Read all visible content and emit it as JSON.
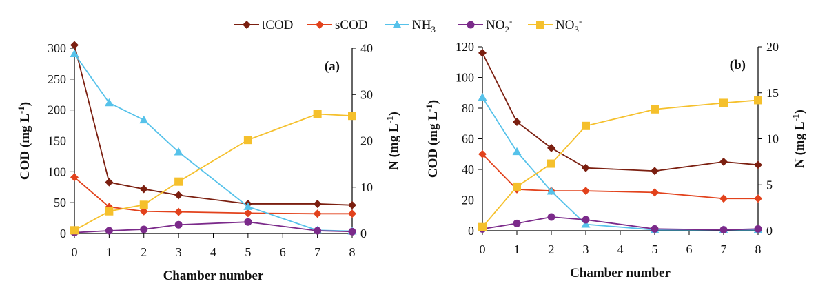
{
  "legend": {
    "items": [
      {
        "key": "tCOD",
        "label": "tCOD",
        "sub": "",
        "sup": "",
        "color": "#7b1f10",
        "marker": "diamond"
      },
      {
        "key": "sCOD",
        "label": "sCOD",
        "sub": "",
        "sup": "",
        "color": "#e2421c",
        "marker": "diamond"
      },
      {
        "key": "NH3",
        "label": "NH",
        "sub": "3",
        "sup": "",
        "color": "#56c2ea",
        "marker": "triangle"
      },
      {
        "key": "NO2",
        "label": "NO",
        "sub": "2",
        "sup": "-",
        "color": "#7b2a8a",
        "marker": "circle"
      },
      {
        "key": "NO3",
        "label": "NO",
        "sub": "3",
        "sup": "-",
        "color": "#f5c02c",
        "marker": "square"
      }
    ]
  },
  "chart_data": [
    {
      "type": "line",
      "panel_label": "(a)",
      "xlabel": "Chamber number",
      "ylabel": "COD (mg L",
      "ylabel_sup": "-1",
      "ylabel_end": ")",
      "y2label": "N (mg L",
      "y2label_sup": "-1",
      "y2label_end": ")",
      "xlim": [
        0,
        8
      ],
      "ylim": [
        0,
        300
      ],
      "y2lim": [
        0,
        40
      ],
      "xticks": [
        0,
        1,
        2,
        3,
        4,
        5,
        6,
        7,
        8
      ],
      "yticks": [
        0,
        50,
        100,
        150,
        200,
        250,
        300
      ],
      "y2ticks": [
        0,
        10,
        20,
        30,
        40
      ],
      "x": [
        0,
        1,
        2,
        3,
        5,
        7,
        8
      ],
      "series": [
        {
          "key": "tCOD",
          "axis": "left",
          "values": [
            305,
            83,
            72,
            62,
            48,
            48,
            46
          ]
        },
        {
          "key": "sCOD",
          "axis": "left",
          "values": [
            91,
            43,
            36,
            35,
            33,
            32,
            32
          ]
        },
        {
          "key": "NH3",
          "axis": "right",
          "values": [
            38.8,
            28.2,
            24.5,
            17.6,
            5.8,
            0.7,
            0.5
          ]
        },
        {
          "key": "NO2",
          "axis": "right",
          "values": [
            0.2,
            0.6,
            0.9,
            1.9,
            2.5,
            0.6,
            0.4
          ]
        },
        {
          "key": "NO3",
          "axis": "right",
          "values": [
            0.7,
            4.8,
            6.2,
            11.2,
            20.2,
            25.8,
            25.4
          ]
        }
      ]
    },
    {
      "type": "line",
      "panel_label": "(b)",
      "xlabel": "Chamber number",
      "ylabel": "COD (mg L",
      "ylabel_sup": "-1",
      "ylabel_end": ")",
      "y2label": "N (mg L",
      "y2label_sup": "-1",
      "y2label_end": ")",
      "xlim": [
        0,
        8
      ],
      "ylim": [
        0,
        120
      ],
      "y2lim": [
        0,
        20
      ],
      "xticks": [
        0,
        1,
        2,
        3,
        4,
        5,
        6,
        7,
        8
      ],
      "yticks": [
        0,
        20,
        40,
        60,
        80,
        100,
        120
      ],
      "y2ticks": [
        0,
        5,
        10,
        15,
        20
      ],
      "x": [
        0,
        1,
        2,
        3,
        5,
        7,
        8
      ],
      "series": [
        {
          "key": "tCOD",
          "axis": "left",
          "values": [
            116,
            71,
            54,
            41,
            39,
            45,
            43
          ]
        },
        {
          "key": "sCOD",
          "axis": "left",
          "values": [
            50,
            27,
            26,
            26,
            25,
            21,
            21
          ]
        },
        {
          "key": "NH3",
          "axis": "right",
          "values": [
            14.5,
            8.6,
            4.3,
            0.7,
            0.1,
            0.1,
            0.1
          ]
        },
        {
          "key": "NO2",
          "axis": "right",
          "values": [
            0.2,
            0.8,
            1.5,
            1.2,
            0.2,
            0.1,
            0.2
          ]
        },
        {
          "key": "NO3",
          "axis": "right",
          "values": [
            0.4,
            4.8,
            7.3,
            11.4,
            13.2,
            13.9,
            14.2
          ]
        }
      ]
    }
  ]
}
